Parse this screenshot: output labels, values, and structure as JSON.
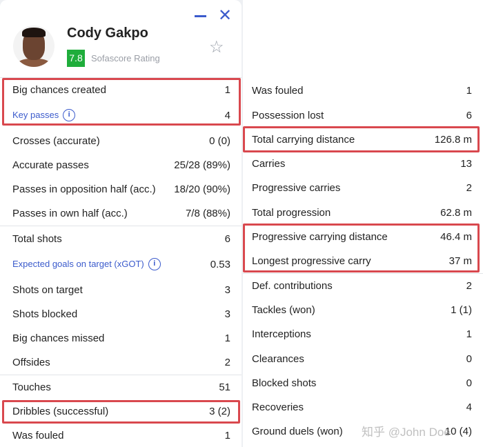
{
  "player": {
    "name": "Cody Gakpo",
    "rating": "7.8",
    "rating_label": "Sofascore Rating",
    "rating_color": "#1fad3b"
  },
  "left_stats": [
    {
      "label": "Big chances created",
      "value": "1"
    },
    {
      "label": "Key passes",
      "value": "4",
      "info": true
    },
    {
      "label": "Crosses (accurate)",
      "value": "0 (0)"
    },
    {
      "label": "Accurate passes",
      "value": "25/28 (89%)"
    },
    {
      "label": "Passes in opposition half (acc.)",
      "value": "18/20 (90%)"
    },
    {
      "label": "Passes in own half (acc.)",
      "value": "7/8 (88%)"
    },
    {
      "label": "Total shots",
      "value": "6"
    },
    {
      "label": "Expected goals on target (xGOT)",
      "value": "0.53",
      "info": true
    },
    {
      "label": "Shots on target",
      "value": "3"
    },
    {
      "label": "Shots blocked",
      "value": "3"
    },
    {
      "label": "Big chances missed",
      "value": "1"
    },
    {
      "label": "Offsides",
      "value": "2"
    },
    {
      "label": "Touches",
      "value": "51"
    },
    {
      "label": "Dribbles (successful)",
      "value": "3 (2)"
    },
    {
      "label": "Was fouled",
      "value": "1"
    }
  ],
  "right_stats": [
    {
      "label": "Was fouled",
      "value": "1"
    },
    {
      "label": "Possession lost",
      "value": "6"
    },
    {
      "label": "Total carrying distance",
      "value": "126.8 m"
    },
    {
      "label": "Carries",
      "value": "13"
    },
    {
      "label": "Progressive carries",
      "value": "2"
    },
    {
      "label": "Total progression",
      "value": "62.8 m"
    },
    {
      "label": "Progressive carrying distance",
      "value": "46.4 m"
    },
    {
      "label": "Longest progressive carry",
      "value": "37 m"
    },
    {
      "label": "Def. contributions",
      "value": "2"
    },
    {
      "label": "Tackles (won)",
      "value": "1 (1)"
    },
    {
      "label": "Interceptions",
      "value": "1"
    },
    {
      "label": "Clearances",
      "value": "0"
    },
    {
      "label": "Blocked shots",
      "value": "0"
    },
    {
      "label": "Recoveries",
      "value": "4"
    },
    {
      "label": "Ground duels (won)",
      "value": "10 (4)"
    }
  ],
  "info_glyph": "i",
  "star_glyph": "☆",
  "close_glyph": "✕",
  "watermark": "知乎 @John Doe",
  "highlight_color": "#d9484e"
}
